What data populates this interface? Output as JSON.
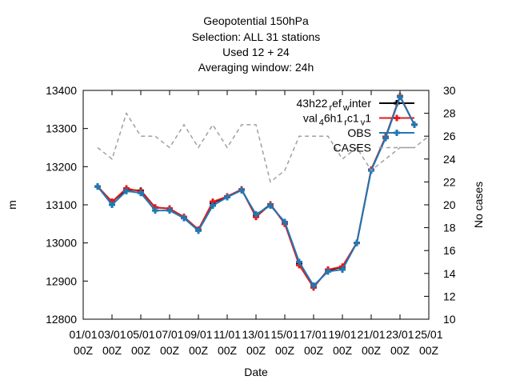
{
  "chart_data": {
    "type": "line",
    "title_lines": [
      "Geopotential 150hPa",
      "Selection: ALL      31 stations",
      "Used  12  + 24",
      "Averaging window: 24h"
    ],
    "xlabel": "Date",
    "ylabel": "m",
    "y2label": "No cases",
    "x": [
      "01/01 00Z",
      "02/01 00Z",
      "03/01 00Z",
      "04/01 00Z",
      "05/01 00Z",
      "06/01 00Z",
      "07/01 00Z",
      "08/01 00Z",
      "09/01 00Z",
      "10/01 00Z",
      "11/01 00Z",
      "12/01 00Z",
      "13/01 00Z",
      "14/01 00Z",
      "15/01 00Z",
      "16/01 00Z",
      "17/01 00Z",
      "18/01 00Z",
      "19/01 00Z",
      "20/01 00Z",
      "21/01 00Z",
      "22/01 00Z",
      "23/01 00Z",
      "24/01 00Z",
      "25/01 00Z"
    ],
    "xticks": [
      "01/01 00Z",
      "03/01 00Z",
      "05/01 00Z",
      "07/01 00Z",
      "09/01 00Z",
      "11/01 00Z",
      "13/01 00Z",
      "15/01 00Z",
      "17/01 00Z",
      "19/01 00Z",
      "21/01 00Z",
      "23/01 00Z",
      "25/01 00Z"
    ],
    "ylim": [
      12800,
      13400
    ],
    "yticks": [
      12800,
      12900,
      13000,
      13100,
      13200,
      13300,
      13400
    ],
    "y2lim": [
      10,
      30
    ],
    "y2ticks": [
      10,
      12,
      14,
      16,
      18,
      20,
      22,
      24,
      26,
      28,
      30
    ],
    "legend_position": "top-right",
    "series": [
      {
        "name": "43h22 ref_w inter",
        "legend_main": "43h22",
        "legend_parts": [
          [
            "r",
            "sub"
          ],
          [
            "ef",
            "base"
          ],
          [
            "w",
            "sub"
          ],
          [
            "inter",
            "base"
          ]
        ],
        "color": "#000000",
        "axis": "left",
        "style": "solid",
        "marker": "plus",
        "values": [
          null,
          13148,
          13108,
          13140,
          13137,
          13093,
          13090,
          13068,
          13035,
          13105,
          13122,
          13140,
          13072,
          13101,
          13052,
          12945,
          12885,
          12928,
          12937,
          13000,
          13192,
          13278,
          13385,
          13310,
          null
        ]
      },
      {
        "name": "val_46h1_rc1_v1",
        "legend_main": "val",
        "legend_parts": [
          [
            "4",
            "sub"
          ],
          [
            "6h1",
            "base"
          ],
          [
            "r",
            "sub"
          ],
          [
            "c1",
            "base"
          ],
          [
            "v",
            "sub"
          ],
          [
            "1",
            "base"
          ]
        ],
        "color": "#e41a1c",
        "axis": "left",
        "style": "solid",
        "marker": "plus",
        "values": [
          null,
          13148,
          13108,
          13143,
          13135,
          13093,
          13090,
          13068,
          13035,
          13108,
          13122,
          13140,
          13068,
          13101,
          13050,
          12942,
          12883,
          12930,
          12938,
          13000,
          13192,
          13278,
          13385,
          13310,
          null
        ]
      },
      {
        "name": "OBS",
        "legend_main": "OBS",
        "legend_parts": [],
        "color": "#1f78b4",
        "axis": "left",
        "style": "solid",
        "marker": "plus",
        "values": [
          null,
          13148,
          13100,
          13136,
          13131,
          13085,
          13085,
          13065,
          13032,
          13098,
          13120,
          13138,
          13075,
          13098,
          13055,
          12950,
          12888,
          12925,
          12930,
          13000,
          13190,
          13275,
          13383,
          13310,
          null
        ]
      },
      {
        "name": "CASES",
        "legend_main": "CASES",
        "legend_parts": [],
        "color": "#a0a0a0",
        "axis": "right",
        "style": "dashed",
        "marker": "none",
        "values": [
          null,
          25,
          24,
          28,
          26,
          26,
          25,
          27,
          25,
          27,
          25,
          27,
          27,
          22,
          23,
          26,
          26,
          26,
          24,
          25,
          23,
          24,
          25,
          25,
          26
        ]
      }
    ]
  }
}
